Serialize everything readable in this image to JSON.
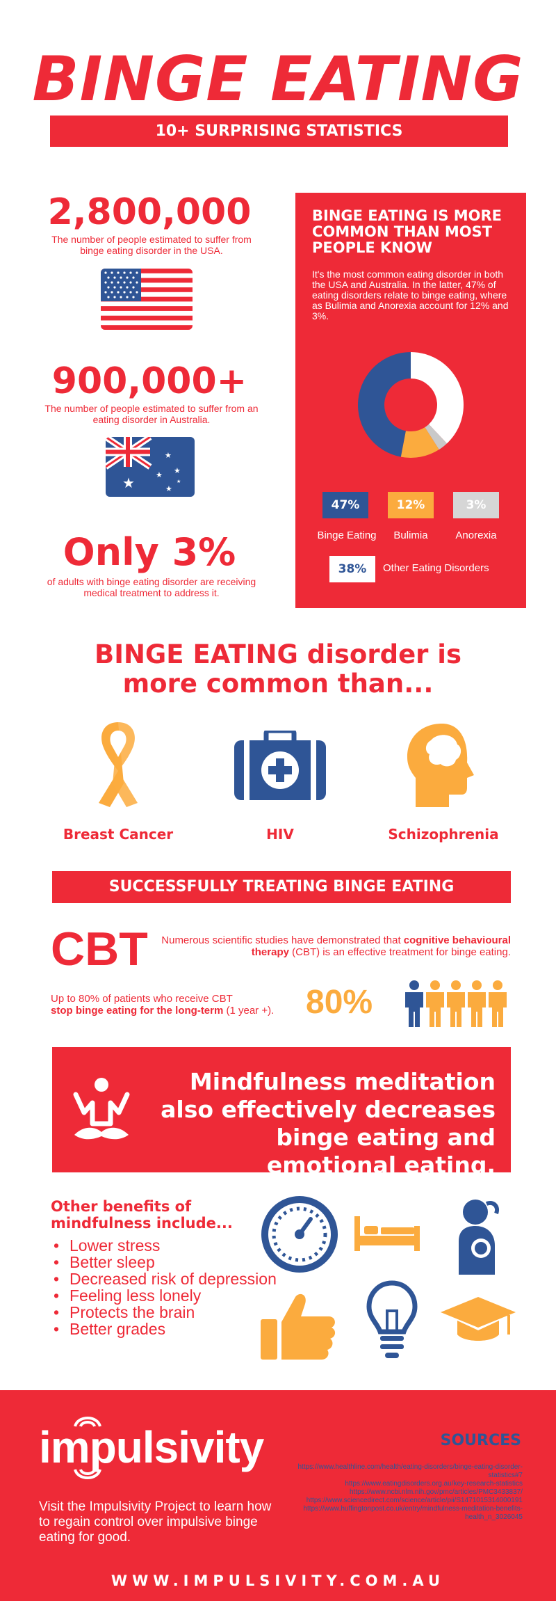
{
  "header": {
    "title": "BINGE EATING",
    "subtitle": "10+ SURPRISING STATISTICS"
  },
  "stats": {
    "usa_number": "2,800,000",
    "usa_desc": "The number of people estimated to suffer from binge eating disorder in the USA.",
    "aus_number": "900,000+",
    "aus_desc": "The number of people estimated to suffer from an eating disorder in Australia.",
    "only_number": "Only 3%",
    "only_desc": "of adults with binge eating disorder are receiving medical treatment to address it."
  },
  "panel": {
    "title": "BINGE EATING IS MORE COMMON THAN MOST PEOPLE KNOW",
    "text": "It's the most common eating disorder in both the USA and Australia. In the latter, 47% of eating disorders relate to binge eating, where as Bulimia and Anorexia account for 12% and 3%.",
    "donut": [
      {
        "label": "Binge Eating",
        "value": 47,
        "display": "47%",
        "color": "#2f5596"
      },
      {
        "label": "Bulimia",
        "value": 12,
        "display": "12%",
        "color": "#fbab3e"
      },
      {
        "label": "Anorexia",
        "value": 3,
        "display": "3%",
        "color": "#c9c9c9"
      },
      {
        "label": "Other Eating Disorders",
        "value": 38,
        "display": "38%",
        "color": "#ffffff"
      }
    ]
  },
  "common": {
    "title_line1": "BINGE EATING disorder is",
    "title_line2": "more common than...",
    "items": [
      {
        "label": "Breast Cancer",
        "icon": "ribbon-icon"
      },
      {
        "label": "HIV",
        "icon": "medical-bag-icon"
      },
      {
        "label": "Schizophrenia",
        "icon": "head-brain-icon"
      }
    ]
  },
  "treating": {
    "banner": "SUCCESSFULLY TREATING BINGE EATING",
    "cbt": "CBT",
    "cbt_text_1": "Numerous scientific studies have demonstrated that ",
    "cbt_text_bold": "cognitive behavioural therapy",
    "cbt_text_2": " (CBT) is an effective treatment for binge eating.",
    "patients_text_1": "Up to 80% of patients who receive CBT",
    "patients_text_bold": "stop binge eating for the long-term",
    "patients_text_2": " (1 year +).",
    "percent": "80%"
  },
  "mindfulness": {
    "text": "Mindfulness meditation also effectively decreases binge eating and emotional eating."
  },
  "benefits": {
    "title": "Other benefits of mindfulness include...",
    "items": [
      "Lower stress",
      "Better sleep",
      "Decreased risk of depression",
      "Feeling less lonely",
      "Protects the brain",
      "Better grades"
    ]
  },
  "footer": {
    "brand": "impulsivity",
    "visit": "Visit the Impulsivity Project to learn how to regain control over impulsive binge eating for good.",
    "sources_title": "SOURCES",
    "sources": [
      "https://www.healthline.com/health/eating-disorders/binge-eating-disorder-statistics#7",
      "https://www.eatingdisorders.org.au/key-research-statistics",
      "https://www.ncbi.nlm.nih.gov/pmc/articles/PMC3433837/",
      "https://www.sciencedirect.com/science/article/pii/S1471015314000191",
      "https://www.huffingtonpost.co.uk/entry/mindfulness-meditation-benefits-health_n_3026045"
    ],
    "site": "WWW.IMPULSIVITY.COM.AU"
  }
}
